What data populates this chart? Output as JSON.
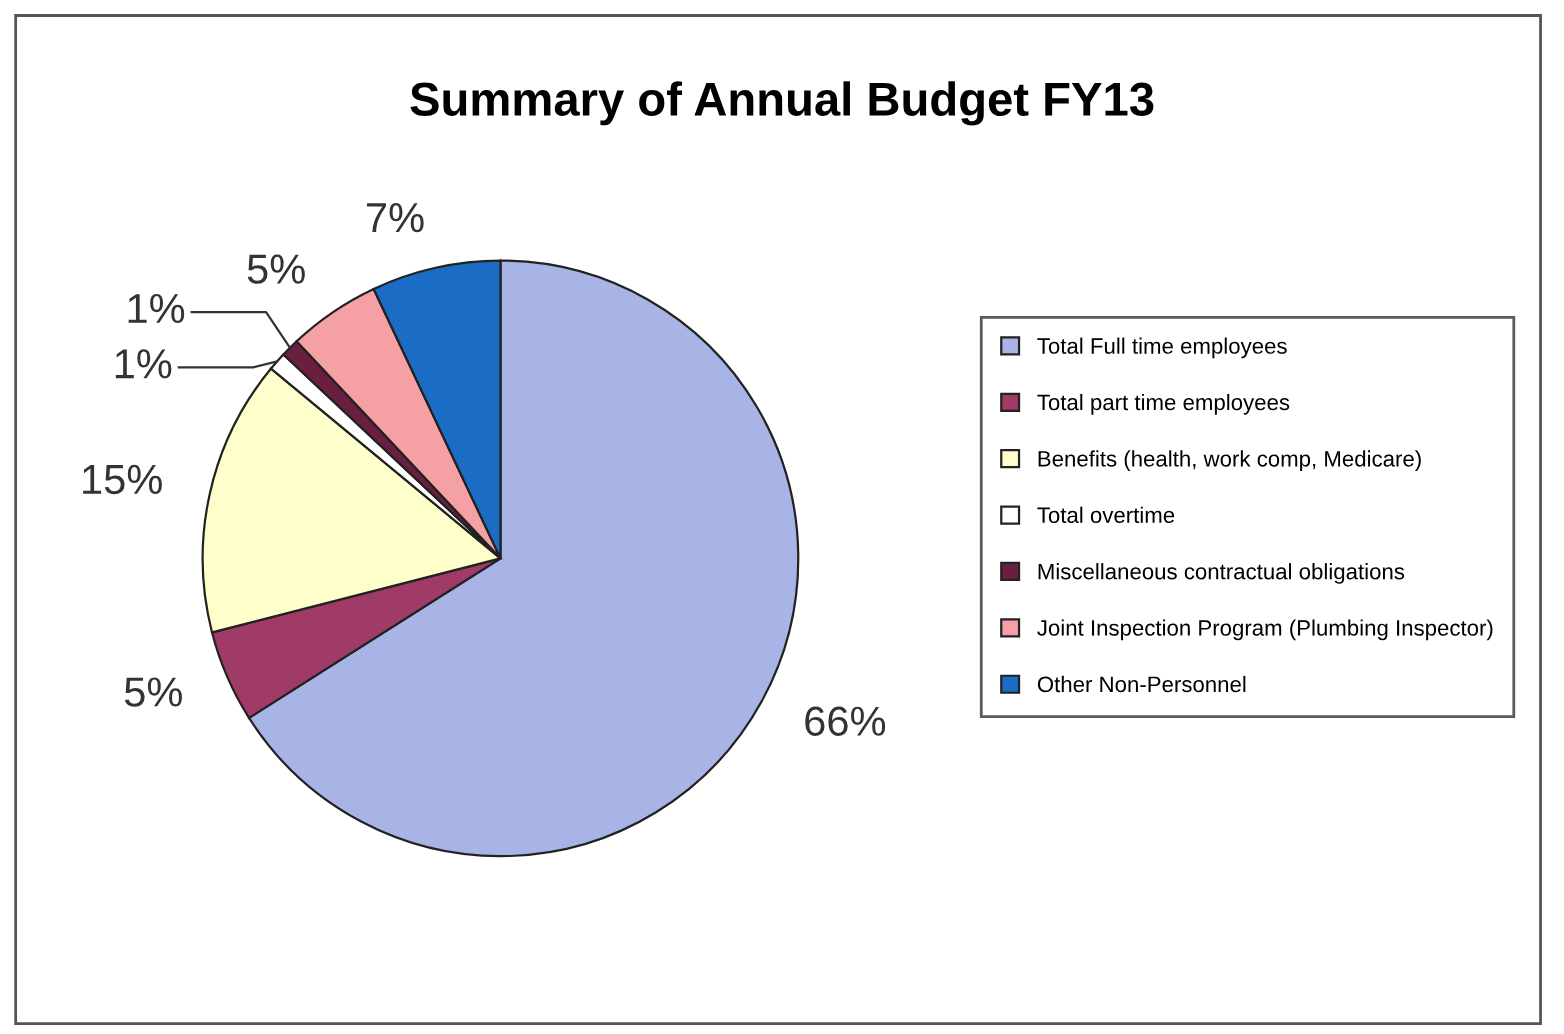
{
  "chart_data": {
    "type": "pie",
    "title": "Summary of Annual Budget FY13",
    "categories": [
      "Total Full time employees",
      "Total part time employees",
      "Benefits (health, work comp, Medicare)",
      "Total overtime",
      "Miscellaneous contractual obligations",
      "Joint Inspection Program (Plumbing Inspector)",
      "Other Non-Personnel"
    ],
    "values": [
      66,
      5,
      15,
      1,
      1,
      5,
      7
    ],
    "colors": [
      "#a8b4e6",
      "#a03a66",
      "#ffffcc",
      "#ffffff",
      "#6b1f40",
      "#f4a0a4",
      "#1a6cc4"
    ],
    "value_labels": [
      "66%",
      "5%",
      "15%",
      "1%",
      "1%",
      "5%",
      "7%"
    ],
    "legend": "right"
  }
}
